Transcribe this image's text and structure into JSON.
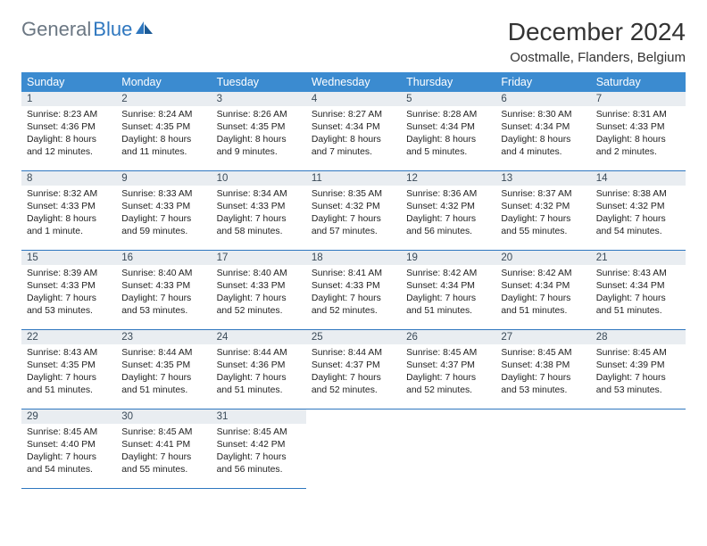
{
  "brand": {
    "part1": "General",
    "part2": "Blue"
  },
  "title": "December 2024",
  "location": "Oostmalle, Flanders, Belgium",
  "colors": {
    "header_bg": "#3b8bd0",
    "header_text": "#ffffff",
    "daynum_bg": "#e9edf1",
    "daynum_text": "#3a4a58",
    "row_border": "#2f77bf",
    "brand_gray": "#6b7783",
    "brand_blue": "#2f77bf",
    "page_bg": "#ffffff",
    "body_text": "#222222"
  },
  "typography": {
    "title_fontsize": 28,
    "location_fontsize": 15,
    "weekday_fontsize": 12.5,
    "daynum_fontsize": 11.5,
    "body_fontsize": 10.4
  },
  "weekdays": [
    "Sunday",
    "Monday",
    "Tuesday",
    "Wednesday",
    "Thursday",
    "Friday",
    "Saturday"
  ],
  "days": [
    {
      "n": 1,
      "sunrise": "8:23 AM",
      "sunset": "4:36 PM",
      "daylight": "8 hours and 12 minutes."
    },
    {
      "n": 2,
      "sunrise": "8:24 AM",
      "sunset": "4:35 PM",
      "daylight": "8 hours and 11 minutes."
    },
    {
      "n": 3,
      "sunrise": "8:26 AM",
      "sunset": "4:35 PM",
      "daylight": "8 hours and 9 minutes."
    },
    {
      "n": 4,
      "sunrise": "8:27 AM",
      "sunset": "4:34 PM",
      "daylight": "8 hours and 7 minutes."
    },
    {
      "n": 5,
      "sunrise": "8:28 AM",
      "sunset": "4:34 PM",
      "daylight": "8 hours and 5 minutes."
    },
    {
      "n": 6,
      "sunrise": "8:30 AM",
      "sunset": "4:34 PM",
      "daylight": "8 hours and 4 minutes."
    },
    {
      "n": 7,
      "sunrise": "8:31 AM",
      "sunset": "4:33 PM",
      "daylight": "8 hours and 2 minutes."
    },
    {
      "n": 8,
      "sunrise": "8:32 AM",
      "sunset": "4:33 PM",
      "daylight": "8 hours and 1 minute."
    },
    {
      "n": 9,
      "sunrise": "8:33 AM",
      "sunset": "4:33 PM",
      "daylight": "7 hours and 59 minutes."
    },
    {
      "n": 10,
      "sunrise": "8:34 AM",
      "sunset": "4:33 PM",
      "daylight": "7 hours and 58 minutes."
    },
    {
      "n": 11,
      "sunrise": "8:35 AM",
      "sunset": "4:32 PM",
      "daylight": "7 hours and 57 minutes."
    },
    {
      "n": 12,
      "sunrise": "8:36 AM",
      "sunset": "4:32 PM",
      "daylight": "7 hours and 56 minutes."
    },
    {
      "n": 13,
      "sunrise": "8:37 AM",
      "sunset": "4:32 PM",
      "daylight": "7 hours and 55 minutes."
    },
    {
      "n": 14,
      "sunrise": "8:38 AM",
      "sunset": "4:32 PM",
      "daylight": "7 hours and 54 minutes."
    },
    {
      "n": 15,
      "sunrise": "8:39 AM",
      "sunset": "4:33 PM",
      "daylight": "7 hours and 53 minutes."
    },
    {
      "n": 16,
      "sunrise": "8:40 AM",
      "sunset": "4:33 PM",
      "daylight": "7 hours and 53 minutes."
    },
    {
      "n": 17,
      "sunrise": "8:40 AM",
      "sunset": "4:33 PM",
      "daylight": "7 hours and 52 minutes."
    },
    {
      "n": 18,
      "sunrise": "8:41 AM",
      "sunset": "4:33 PM",
      "daylight": "7 hours and 52 minutes."
    },
    {
      "n": 19,
      "sunrise": "8:42 AM",
      "sunset": "4:34 PM",
      "daylight": "7 hours and 51 minutes."
    },
    {
      "n": 20,
      "sunrise": "8:42 AM",
      "sunset": "4:34 PM",
      "daylight": "7 hours and 51 minutes."
    },
    {
      "n": 21,
      "sunrise": "8:43 AM",
      "sunset": "4:34 PM",
      "daylight": "7 hours and 51 minutes."
    },
    {
      "n": 22,
      "sunrise": "8:43 AM",
      "sunset": "4:35 PM",
      "daylight": "7 hours and 51 minutes."
    },
    {
      "n": 23,
      "sunrise": "8:44 AM",
      "sunset": "4:35 PM",
      "daylight": "7 hours and 51 minutes."
    },
    {
      "n": 24,
      "sunrise": "8:44 AM",
      "sunset": "4:36 PM",
      "daylight": "7 hours and 51 minutes."
    },
    {
      "n": 25,
      "sunrise": "8:44 AM",
      "sunset": "4:37 PM",
      "daylight": "7 hours and 52 minutes."
    },
    {
      "n": 26,
      "sunrise": "8:45 AM",
      "sunset": "4:37 PM",
      "daylight": "7 hours and 52 minutes."
    },
    {
      "n": 27,
      "sunrise": "8:45 AM",
      "sunset": "4:38 PM",
      "daylight": "7 hours and 53 minutes."
    },
    {
      "n": 28,
      "sunrise": "8:45 AM",
      "sunset": "4:39 PM",
      "daylight": "7 hours and 53 minutes."
    },
    {
      "n": 29,
      "sunrise": "8:45 AM",
      "sunset": "4:40 PM",
      "daylight": "7 hours and 54 minutes."
    },
    {
      "n": 30,
      "sunrise": "8:45 AM",
      "sunset": "4:41 PM",
      "daylight": "7 hours and 55 minutes."
    },
    {
      "n": 31,
      "sunrise": "8:45 AM",
      "sunset": "4:42 PM",
      "daylight": "7 hours and 56 minutes."
    }
  ],
  "labels": {
    "sunrise": "Sunrise: ",
    "sunset": "Sunset: ",
    "daylight": "Daylight: "
  },
  "layout": {
    "first_weekday_index": 0,
    "total_cells": 35
  }
}
